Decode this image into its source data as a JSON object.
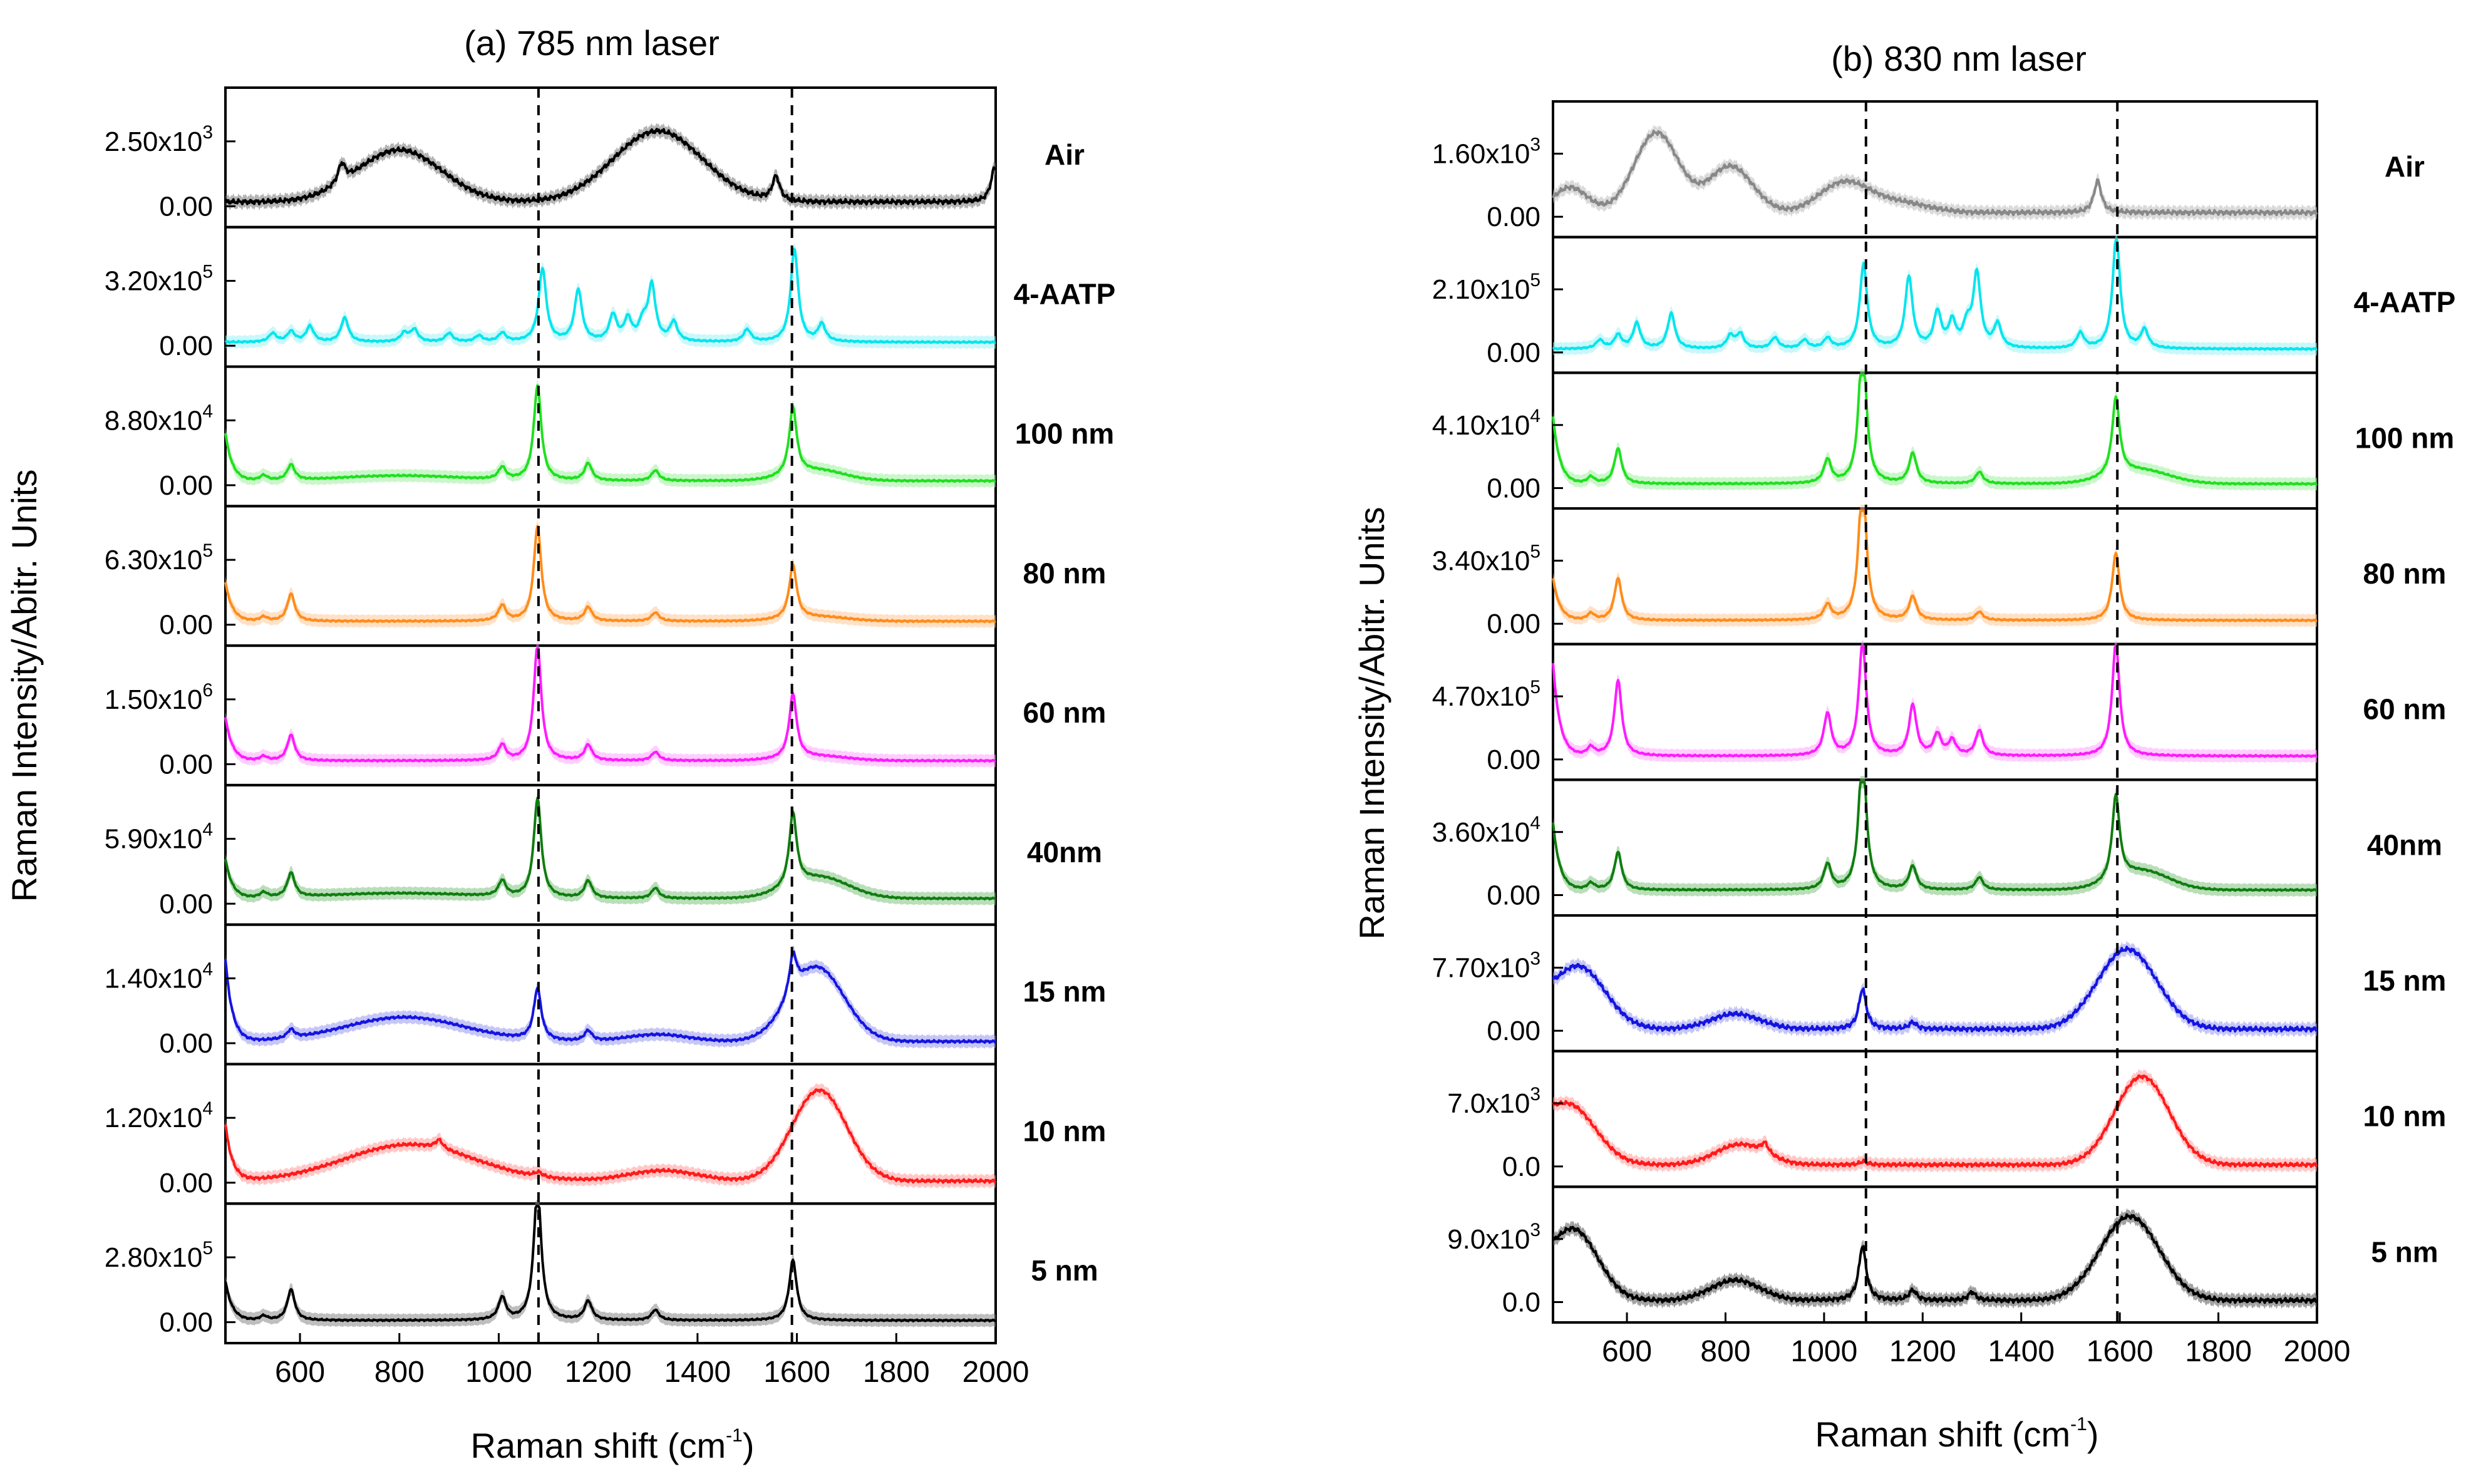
{
  "chart_data": [
    {
      "type": "line",
      "title": "(a) 785 nm laser",
      "xlabel": "Raman shift (cm",
      "xlabel_sup": "-1",
      "xlabel_end": ")",
      "ylabel": "Raman Intensity/Abitr. Units",
      "xlim": [
        450,
        2000
      ],
      "xticks": [
        600,
        800,
        1000,
        1200,
        1400,
        1600,
        1800,
        2000
      ],
      "reference_lines": [
        1080,
        1590
      ],
      "series": [
        {
          "name": "Air",
          "color": "#000000",
          "band": "#777777",
          "ytick_base": "2.50x10",
          "ytick_exp": "3",
          "ytick_zero": "0.00",
          "baseline": 0.05,
          "broad": [
            [
              800,
              0.6,
              85
            ],
            [
              1320,
              0.82,
              90
            ]
          ],
          "peaks": [
            [
              684,
              0.22
            ],
            [
              1558,
              0.28
            ],
            [
              1998,
              0.4
            ]
          ],
          "edge": 0.0,
          "noise": 0.03
        },
        {
          "name": "4-AATP",
          "color": "#00e5ee",
          "band": "#9ff3f6",
          "ytick_base": "3.20x10",
          "ytick_exp": "5",
          "ytick_zero": "0.00",
          "baseline": 0.04,
          "broad": [],
          "peaks": [
            [
              545,
              0.1
            ],
            [
              582,
              0.12
            ],
            [
              620,
              0.18
            ],
            [
              690,
              0.28
            ],
            [
              810,
              0.1
            ],
            [
              830,
              0.14
            ],
            [
              900,
              0.1
            ],
            [
              960,
              0.07
            ],
            [
              1007,
              0.1
            ],
            [
              1088,
              0.85
            ],
            [
              1160,
              0.6
            ],
            [
              1230,
              0.3
            ],
            [
              1260,
              0.25
            ],
            [
              1290,
              0.2
            ],
            [
              1308,
              0.64
            ],
            [
              1352,
              0.22
            ],
            [
              1500,
              0.14
            ],
            [
              1595,
              1.08
            ],
            [
              1650,
              0.2
            ]
          ],
          "edge": 0.0,
          "noise": 0.01
        },
        {
          "name": "100 nm",
          "color": "#1fe01f",
          "band": "#9ff09f",
          "ytick_base": "8.80x10",
          "ytick_exp": "4",
          "ytick_zero": "0.00",
          "baseline": 0.05,
          "broad": [
            [
              800,
              0.06,
              120
            ],
            [
              1640,
              0.12,
              55
            ]
          ],
          "peaks": [
            [
              527,
              0.06
            ],
            [
              582,
              0.18
            ],
            [
              1007,
              0.14
            ],
            [
              1078,
              1.1
            ],
            [
              1180,
              0.2
            ],
            [
              1315,
              0.12
            ],
            [
              1592,
              0.78
            ]
          ],
          "edge": 0.55,
          "noise": 0.01
        },
        {
          "name": "80 nm",
          "color": "#ff8c1a",
          "band": "#ffc999",
          "ytick_base": "6.30x10",
          "ytick_exp": "5",
          "ytick_zero": "0.00",
          "baseline": 0.04,
          "broad": [
            [
              1640,
              0.05,
              60
            ]
          ],
          "peaks": [
            [
              527,
              0.05
            ],
            [
              582,
              0.32
            ],
            [
              1007,
              0.18
            ],
            [
              1078,
              1.1
            ],
            [
              1180,
              0.16
            ],
            [
              1315,
              0.1
            ],
            [
              1592,
              0.62
            ]
          ],
          "edge": 0.45,
          "noise": 0.01
        },
        {
          "name": "60 nm",
          "color": "#ff1aff",
          "band": "#ffa6ff",
          "ytick_base": "1.50x10",
          "ytick_exp": "6",
          "ytick_zero": "0.00",
          "baseline": 0.04,
          "broad": [
            [
              1640,
              0.05,
              60
            ]
          ],
          "peaks": [
            [
              527,
              0.05
            ],
            [
              582,
              0.3
            ],
            [
              1007,
              0.18
            ],
            [
              1078,
              1.35
            ],
            [
              1180,
              0.18
            ],
            [
              1315,
              0.1
            ],
            [
              1592,
              0.74
            ]
          ],
          "edge": 0.5,
          "noise": 0.01
        },
        {
          "name": "40nm",
          "color": "#0f7d0f",
          "band": "#7fc27f",
          "ytick_base": "5.90x10",
          "ytick_exp": "4",
          "ytick_zero": "0.00",
          "baseline": 0.06,
          "broad": [
            [
              800,
              0.06,
              150
            ],
            [
              1645,
              0.24,
              60
            ]
          ],
          "peaks": [
            [
              527,
              0.06
            ],
            [
              582,
              0.28
            ],
            [
              1007,
              0.18
            ],
            [
              1078,
              1.15
            ],
            [
              1180,
              0.2
            ],
            [
              1315,
              0.12
            ],
            [
              1592,
              0.84
            ]
          ],
          "edge": 0.45,
          "noise": 0.01
        },
        {
          "name": "15 nm",
          "color": "#1414e0",
          "band": "#9898f0",
          "ytick_base": "1.40x10",
          "ytick_exp": "4",
          "ytick_zero": "0.00",
          "baseline": 0.02,
          "broad": [
            [
              810,
              0.28,
              120
            ],
            [
              1320,
              0.08,
              60
            ],
            [
              1640,
              0.85,
              55
            ]
          ],
          "peaks": [
            [
              582,
              0.1
            ],
            [
              1078,
              0.6
            ],
            [
              1180,
              0.12
            ],
            [
              1592,
              0.45
            ]
          ],
          "edge": 0.95,
          "noise": 0.015
        },
        {
          "name": "10 nm",
          "color": "#ff1a1a",
          "band": "#ff9999",
          "ytick_base": "1.20x10",
          "ytick_exp": "4",
          "ytick_zero": "0.00",
          "baseline": 0.02,
          "broad": [
            [
              820,
              0.42,
              130
            ],
            [
              1330,
              0.12,
              70
            ],
            [
              1645,
              1.05,
              55
            ]
          ],
          "peaks": [
            [
              880,
              0.1
            ],
            [
              1080,
              0.05
            ]
          ],
          "edge": 0.65,
          "noise": 0.02
        },
        {
          "name": "5 nm",
          "color": "#000000",
          "band": "#888888",
          "ytick_base": "2.80x10",
          "ytick_exp": "5",
          "ytick_zero": "0.00",
          "baseline": 0.02,
          "broad": [],
          "peaks": [
            [
              527,
              0.05
            ],
            [
              582,
              0.36
            ],
            [
              1007,
              0.26
            ],
            [
              1078,
              1.55
            ],
            [
              1180,
              0.22
            ],
            [
              1315,
              0.12
            ],
            [
              1592,
              0.7
            ]
          ],
          "edge": 0.45,
          "noise": 0.01
        }
      ]
    },
    {
      "type": "line",
      "title": "(b) 830 nm laser",
      "xlabel": "Raman shift (cm",
      "xlabel_sup": "-1",
      "xlabel_end": ")",
      "ylabel": "Raman Intensity/Abitr. Units",
      "xlim": [
        450,
        2000
      ],
      "xticks": [
        600,
        800,
        1000,
        1200,
        1400,
        1600,
        1800,
        2000
      ],
      "reference_lines": [
        1085,
        1595
      ],
      "series": [
        {
          "name": "Air",
          "color": "#888888",
          "band": "#bbbbbb",
          "ytick_base": "1.60x10",
          "ytick_exp": "3",
          "ytick_zero": "0.00",
          "baseline": 0.05,
          "broad": [
            [
              485,
              0.3,
              35
            ],
            [
              660,
              0.95,
              45
            ],
            [
              810,
              0.55,
              45
            ],
            [
              1040,
              0.35,
              50
            ],
            [
              1150,
              0.12,
              60
            ]
          ],
          "peaks": [
            [
              1555,
              0.38
            ]
          ],
          "edge": 0.0,
          "noise": 0.03
        },
        {
          "name": "4-AATP",
          "color": "#00e5ee",
          "band": "#9ff3f6",
          "ytick_base": "2.10x10",
          "ytick_exp": "5",
          "ytick_zero": "0.00",
          "baseline": 0.04,
          "broad": [],
          "peaks": [
            [
              545,
              0.1
            ],
            [
              582,
              0.16
            ],
            [
              620,
              0.3
            ],
            [
              690,
              0.42
            ],
            [
              810,
              0.15
            ],
            [
              830,
              0.17
            ],
            [
              900,
              0.13
            ],
            [
              960,
              0.1
            ],
            [
              1007,
              0.12
            ],
            [
              1080,
              1.0
            ],
            [
              1172,
              0.85
            ],
            [
              1230,
              0.42
            ],
            [
              1260,
              0.3
            ],
            [
              1290,
              0.25
            ],
            [
              1310,
              0.88
            ],
            [
              1352,
              0.28
            ],
            [
              1520,
              0.18
            ],
            [
              1593,
              1.35
            ],
            [
              1650,
              0.22
            ]
          ],
          "edge": 0.0,
          "noise": 0.01
        },
        {
          "name": "100 nm",
          "color": "#1fe01f",
          "band": "#9ff09f",
          "ytick_base": "4.10x10",
          "ytick_exp": "4",
          "ytick_zero": "0.00",
          "baseline": 0.05,
          "broad": [
            [
              1640,
              0.16,
              60
            ]
          ],
          "peaks": [
            [
              527,
              0.08
            ],
            [
              582,
              0.42
            ],
            [
              1007,
              0.28
            ],
            [
              1078,
              1.75
            ],
            [
              1180,
              0.36
            ],
            [
              1315,
              0.14
            ],
            [
              1592,
              0.92
            ]
          ],
          "edge": 0.8,
          "noise": 0.01
        },
        {
          "name": "80 nm",
          "color": "#ff8c1a",
          "band": "#ffc999",
          "ytick_base": "3.40x10",
          "ytick_exp": "5",
          "ytick_zero": "0.00",
          "baseline": 0.04,
          "broad": [],
          "peaks": [
            [
              527,
              0.08
            ],
            [
              582,
              0.5
            ],
            [
              1007,
              0.18
            ],
            [
              1078,
              1.75
            ],
            [
              1180,
              0.28
            ],
            [
              1315,
              0.1
            ],
            [
              1592,
              0.8
            ]
          ],
          "edge": 0.5,
          "noise": 0.01
        },
        {
          "name": "60 nm",
          "color": "#ff1aff",
          "band": "#ffa6ff",
          "ytick_base": "4.70x10",
          "ytick_exp": "5",
          "ytick_zero": "0.00",
          "baseline": 0.04,
          "broad": [],
          "peaks": [
            [
              527,
              0.1
            ],
            [
              582,
              0.9
            ],
            [
              1007,
              0.5
            ],
            [
              1078,
              1.35
            ],
            [
              1180,
              0.6
            ],
            [
              1230,
              0.25
            ],
            [
              1260,
              0.18
            ],
            [
              1315,
              0.3
            ],
            [
              1592,
              1.35
            ]
          ],
          "edge": 1.1,
          "noise": 0.01
        },
        {
          "name": "40nm",
          "color": "#0f7d0f",
          "band": "#7fc27f",
          "ytick_base": "3.60x10",
          "ytick_exp": "4",
          "ytick_zero": "0.00",
          "baseline": 0.06,
          "broad": [
            [
              1645,
              0.22,
              55
            ]
          ],
          "peaks": [
            [
              527,
              0.08
            ],
            [
              582,
              0.45
            ],
            [
              1007,
              0.3
            ],
            [
              1078,
              1.7
            ],
            [
              1180,
              0.28
            ],
            [
              1315,
              0.15
            ],
            [
              1592,
              1.0
            ]
          ],
          "edge": 0.8,
          "noise": 0.01
        },
        {
          "name": "15 nm",
          "color": "#1414e0",
          "band": "#9898f0",
          "ytick_base": "7.70x10",
          "ytick_exp": "3",
          "ytick_zero": "0.00",
          "baseline": 0.02,
          "broad": [
            [
              500,
              0.75,
              55
            ],
            [
              820,
              0.18,
              50
            ],
            [
              1615,
              0.95,
              60
            ]
          ],
          "peaks": [
            [
              1078,
              0.48
            ],
            [
              1180,
              0.08
            ]
          ],
          "edge": 0.1,
          "noise": 0.03
        },
        {
          "name": "10 nm",
          "color": "#ff1a1a",
          "band": "#ff9999",
          "ytick_base": "7.0x10",
          "ytick_exp": "3",
          "ytick_zero": "0.0",
          "baseline": 0.02,
          "broad": [
            [
              480,
              0.72,
              55
            ],
            [
              830,
              0.24,
              50
            ],
            [
              1645,
              1.05,
              55
            ]
          ],
          "peaks": [
            [
              880,
              0.12
            ],
            [
              1080,
              0.04
            ]
          ],
          "edge": 0.1,
          "noise": 0.025
        },
        {
          "name": "5 nm",
          "color": "#000000",
          "band": "#555555",
          "ytick_base": "9.0x10",
          "ytick_exp": "3",
          "ytick_zero": "0.0",
          "baseline": 0.02,
          "broad": [
            [
              490,
              0.85,
              50
            ],
            [
              820,
              0.24,
              50
            ],
            [
              1620,
              1.0,
              60
            ]
          ],
          "peaks": [
            [
              1078,
              0.65
            ],
            [
              1180,
              0.12
            ],
            [
              1300,
              0.1
            ]
          ],
          "edge": 0.1,
          "noise": 0.03
        }
      ]
    }
  ]
}
